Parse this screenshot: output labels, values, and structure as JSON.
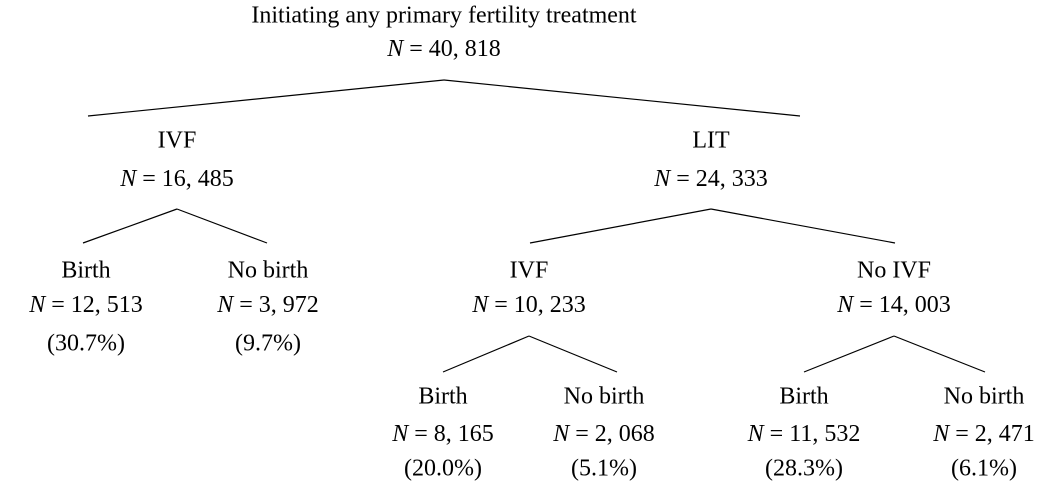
{
  "symbol": "N",
  "relation": "=",
  "nodes": [
    {
      "label": "Initiating any primary fertility treatment",
      "count": "40, 818"
    },
    {
      "label": "IVF",
      "count": "16, 485"
    },
    {
      "label": "LIT",
      "count": "24, 333"
    },
    {
      "label": "Birth",
      "count": "12, 513",
      "share": "(30.7%)"
    },
    {
      "label": "No birth",
      "count": "3, 972",
      "share": "(9.7%)"
    },
    {
      "label": "IVF",
      "count": "10, 233"
    },
    {
      "label": "No IVF",
      "count": "14, 003"
    },
    {
      "label": "Birth",
      "count": "8, 165",
      "share": "(20.0%)"
    },
    {
      "label": "No birth",
      "count": "2, 068",
      "share": "(5.1%)"
    },
    {
      "label": "Birth",
      "count": "11, 532",
      "share": "(28.3%)"
    },
    {
      "label": "No birth",
      "count": "2, 471",
      "share": "(6.1%)"
    }
  ]
}
